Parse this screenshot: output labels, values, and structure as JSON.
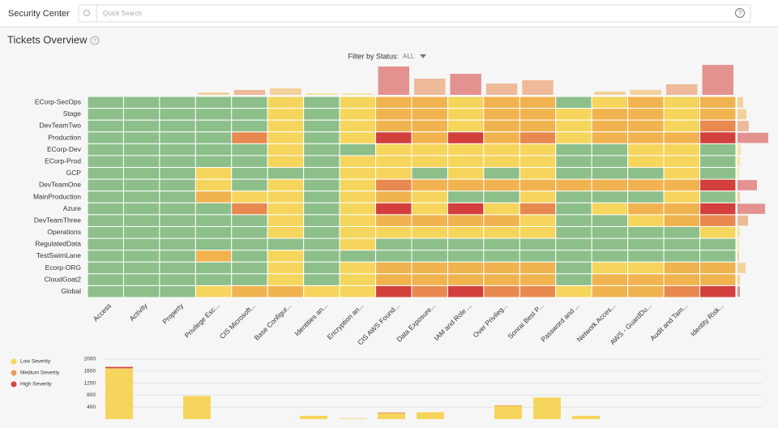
{
  "header": {
    "title": "Security Center",
    "search_placeholder": "Quick Search",
    "help": "?"
  },
  "overview": {
    "title": "Tickets Overview",
    "help": "?",
    "filter_label": "Filter by Status:",
    "filter_value": "ALL"
  },
  "heatmap": {
    "rows": [
      "ECorp-SecOps",
      "Stage",
      "DevTeamTwo",
      "Production",
      "ECorp-Dev",
      "ECorp-Prod",
      "GCP",
      "DevTeamOne",
      "MainProduction",
      "Azure",
      "DevTeamThree",
      "Operations",
      "RegulatedData",
      "TestSwimLane",
      "Ecorp-ORG",
      "CloudGoat2",
      "Global"
    ],
    "columns": [
      "Access",
      "Activity",
      "Property",
      "Privilege Esc...",
      "CIS Microsoft...",
      "Base Configur...",
      "Identities an...",
      "Encryption an...",
      "CIS AWS Found...",
      "Data Exposure...",
      "IAM and Role ...",
      "Over Privileg...",
      "Sonrai Best P...",
      "Password and ...",
      "Network Acces...",
      "AWS - GuardDu...",
      "Audit and Tam...",
      "Identity Risk..."
    ],
    "level_colors": [
      "#8dbf8b",
      "#f6d55c",
      "#f0b34f",
      "#e8894f",
      "#d33f3d"
    ],
    "levels": [
      [
        0,
        0,
        0,
        0,
        0,
        1,
        0,
        1,
        2,
        2,
        1,
        2,
        2,
        0,
        1,
        2,
        1,
        2
      ],
      [
        0,
        0,
        0,
        0,
        0,
        1,
        0,
        1,
        2,
        2,
        1,
        2,
        2,
        1,
        2,
        2,
        1,
        2
      ],
      [
        0,
        0,
        0,
        0,
        0,
        1,
        0,
        1,
        2,
        2,
        1,
        2,
        2,
        1,
        2,
        2,
        1,
        3
      ],
      [
        0,
        0,
        0,
        0,
        3,
        1,
        0,
        1,
        4,
        2,
        4,
        2,
        3,
        1,
        2,
        2,
        2,
        4
      ],
      [
        0,
        0,
        0,
        0,
        0,
        1,
        0,
        0,
        1,
        1,
        1,
        1,
        1,
        0,
        0,
        1,
        1,
        0
      ],
      [
        0,
        0,
        0,
        0,
        0,
        1,
        0,
        1,
        1,
        1,
        1,
        1,
        1,
        0,
        0,
        1,
        1,
        0
      ],
      [
        0,
        0,
        0,
        1,
        0,
        0,
        0,
        1,
        1,
        0,
        1,
        0,
        1,
        0,
        0,
        0,
        1,
        0
      ],
      [
        0,
        0,
        0,
        1,
        0,
        1,
        0,
        1,
        3,
        2,
        2,
        2,
        2,
        2,
        2,
        2,
        2,
        4
      ],
      [
        0,
        0,
        0,
        2,
        1,
        1,
        0,
        1,
        2,
        1,
        0,
        0,
        1,
        0,
        0,
        0,
        1,
        0
      ],
      [
        0,
        0,
        0,
        0,
        3,
        1,
        0,
        1,
        4,
        1,
        4,
        1,
        3,
        0,
        1,
        2,
        2,
        4
      ],
      [
        0,
        0,
        0,
        0,
        0,
        1,
        0,
        1,
        2,
        2,
        2,
        2,
        1,
        0,
        0,
        1,
        2,
        3
      ],
      [
        0,
        0,
        0,
        0,
        0,
        1,
        0,
        1,
        1,
        1,
        1,
        1,
        1,
        0,
        0,
        0,
        0,
        1
      ],
      [
        0,
        0,
        0,
        0,
        0,
        0,
        0,
        1,
        0,
        0,
        0,
        0,
        0,
        0,
        0,
        0,
        0,
        0
      ],
      [
        0,
        0,
        0,
        2,
        0,
        1,
        0,
        0,
        0,
        0,
        0,
        0,
        0,
        0,
        0,
        0,
        0,
        0
      ],
      [
        0,
        0,
        0,
        0,
        0,
        1,
        0,
        1,
        2,
        2,
        2,
        2,
        2,
        0,
        1,
        1,
        2,
        2
      ],
      [
        0,
        0,
        0,
        0,
        0,
        1,
        0,
        1,
        2,
        2,
        2,
        2,
        2,
        0,
        2,
        2,
        2,
        2
      ],
      [
        0,
        0,
        0,
        1,
        2,
        2,
        1,
        1,
        4,
        3,
        4,
        3,
        3,
        1,
        2,
        2,
        3,
        4
      ]
    ],
    "column_totals": [
      0,
      0,
      0,
      3,
      6,
      8,
      2,
      2,
      35,
      20,
      26,
      14,
      18,
      0,
      4,
      6,
      13,
      37
    ],
    "row_totals": [
      7,
      11,
      14,
      38,
      4,
      3,
      2,
      24,
      3,
      34,
      13,
      3,
      2,
      2,
      10,
      3,
      3
    ]
  },
  "severity_chart": {
    "type": "bar",
    "stacked": true,
    "ylim": [
      0,
      2000
    ],
    "yticks": [
      400,
      800,
      1200,
      1600,
      2000
    ],
    "grid": true,
    "series": [
      {
        "name": "Low Severity",
        "color": "#f6d55c",
        "values": [
          1680,
          0,
          770,
          0,
          0,
          110,
          20,
          190,
          230,
          0,
          440,
          720,
          110,
          0,
          0,
          0,
          0
        ]
      },
      {
        "name": "Medium Severity",
        "color": "#ec9a5a",
        "values": [
          20,
          0,
          0,
          0,
          0,
          0,
          0,
          30,
          0,
          0,
          20,
          0,
          0,
          0,
          0,
          0,
          0
        ]
      },
      {
        "name": "High Severity",
        "color": "#d64541",
        "values": [
          40,
          0,
          0,
          0,
          0,
          0,
          0,
          0,
          0,
          0,
          0,
          0,
          0,
          0,
          0,
          0,
          0
        ]
      }
    ]
  }
}
